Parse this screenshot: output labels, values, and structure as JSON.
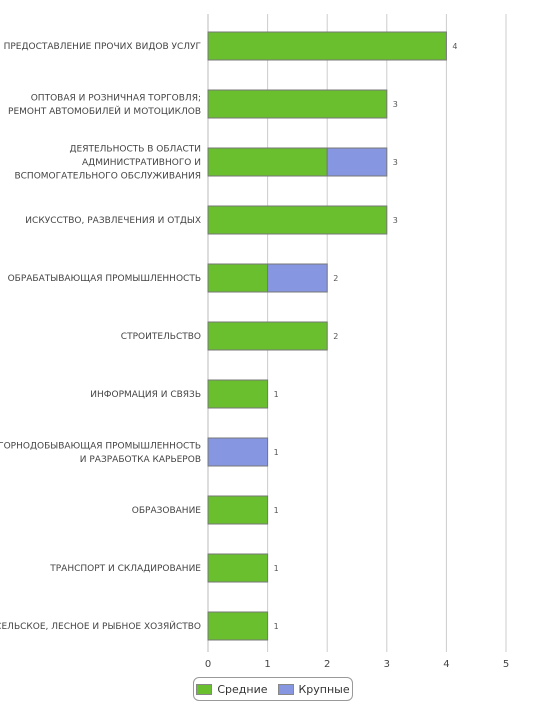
{
  "chart_data": {
    "type": "bar",
    "orientation": "horizontal",
    "stacked": true,
    "categories": [
      [
        "ПРЕДОСТАВЛЕНИЕ ПРОЧИХ ВИДОВ УСЛУГ"
      ],
      [
        "ОПТОВАЯ И РОЗНИЧНАЯ ТОРГОВЛЯ;",
        "РЕМОНТ АВТОМОБИЛЕЙ И МОТОЦИКЛОВ"
      ],
      [
        "ДЕЯТЕЛЬНОСТЬ В ОБЛАСТИ",
        "АДМИНИСТРАТИВНОГО И",
        "ВСПОМОГАТЕЛЬНОГО ОБСЛУЖИВАНИЯ"
      ],
      [
        "ИСКУССТВО, РАЗВЛЕЧЕНИЯ И ОТДЫХ"
      ],
      [
        "ОБРАБАТЫВАЮЩАЯ ПРОМЫШЛЕННОСТЬ"
      ],
      [
        "СТРОИТЕЛЬСТВО"
      ],
      [
        "ИНФОРМАЦИЯ И СВЯЗЬ"
      ],
      [
        "ГОРНОДОБЫВАЮЩАЯ ПРОМЫШЛЕННОСТЬ",
        "И РАЗРАБОТКА КАРЬЕРОВ"
      ],
      [
        "ОБРАЗОВАНИЕ"
      ],
      [
        "ТРАНСПОРТ И СКЛАДИРОВАНИЕ"
      ],
      [
        "СЕЛЬСКОЕ, ЛЕСНОЕ И РЫБНОЕ ХОЗЯЙСТВО"
      ]
    ],
    "series": [
      {
        "name": "Средние",
        "color": "#6abf2e",
        "values": [
          4,
          3,
          2,
          3,
          1,
          2,
          1,
          0,
          1,
          1,
          1
        ]
      },
      {
        "name": "Крупные",
        "color": "#8796e0",
        "values": [
          0,
          0,
          1,
          0,
          1,
          0,
          0,
          1,
          0,
          0,
          0
        ]
      }
    ],
    "totals": [
      4,
      3,
      3,
      3,
      2,
      2,
      1,
      1,
      1,
      1,
      1
    ],
    "xlim": [
      0,
      5
    ],
    "xticks": [
      "0",
      "1",
      "2",
      "3",
      "4",
      "5"
    ],
    "grid": true,
    "legend_position": "bottom"
  }
}
